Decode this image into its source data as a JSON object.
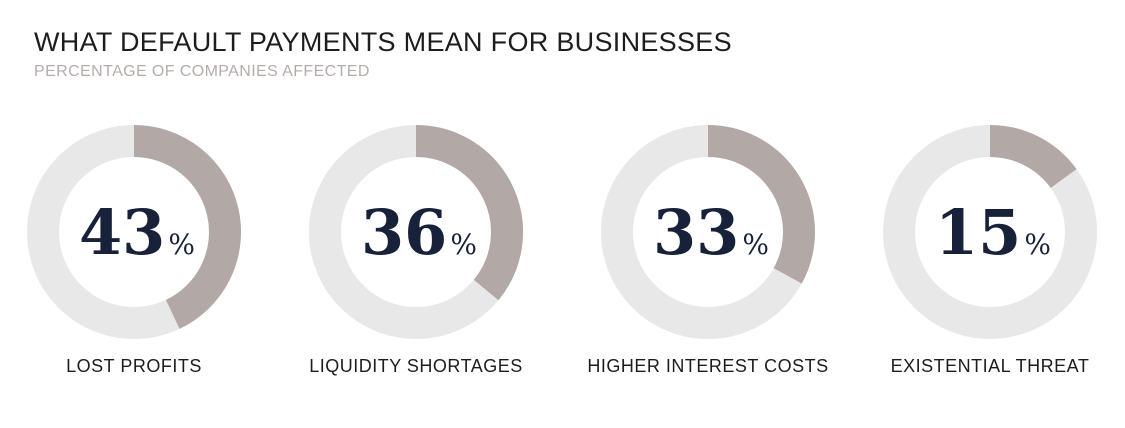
{
  "title": "WHAT DEFAULT PAYMENTS MEAN FOR BUSINESSES",
  "subtitle": "PERCENTAGE OF COMPANIES AFFECTED",
  "colors": {
    "affected": "#b2a8a6",
    "track": "#e9e8e8",
    "number": "#17213a",
    "label": "#1d1d1d"
  },
  "chart_data": {
    "type": "pie",
    "unit": "%",
    "title": "WHAT DEFAULT PAYMENTS MEAN FOR BUSINESSES",
    "subtitle": "PERCENTAGE OF COMPANIES AFFECTED",
    "categories": [
      "LOST PROFITS",
      "LIQUIDITY SHORTAGES",
      "HIGHER INTEREST COSTS",
      "EXISTENTIAL THREAT"
    ],
    "values": [
      43,
      36,
      33,
      15
    ],
    "max": 100
  }
}
